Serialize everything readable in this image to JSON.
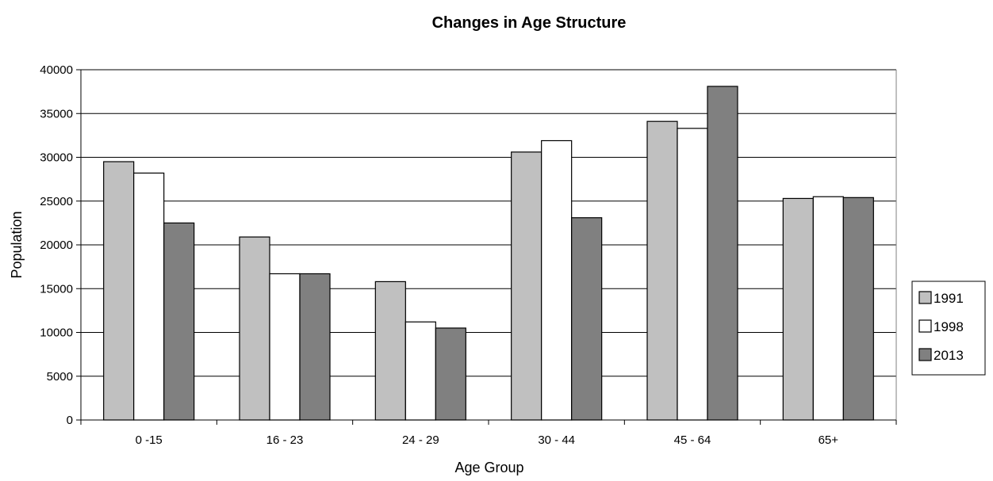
{
  "chart_data": {
    "type": "bar",
    "title": "Changes in Age Structure",
    "xlabel": "Age Group",
    "ylabel": "Population",
    "ylim": [
      0,
      40000
    ],
    "yticks": [
      0,
      5000,
      10000,
      15000,
      20000,
      25000,
      30000,
      35000,
      40000
    ],
    "grid": true,
    "legend_position": "right",
    "categories": [
      "0 -15",
      "16 - 23",
      "24 - 29",
      "30 - 44",
      "45 - 64",
      "65+"
    ],
    "series": [
      {
        "name": "1991",
        "color": "#c0c0c0",
        "values": [
          29500,
          20900,
          15800,
          30600,
          34100,
          25300
        ]
      },
      {
        "name": "1998",
        "color": "#ffffff",
        "values": [
          28200,
          16700,
          11200,
          31900,
          33300,
          25500
        ]
      },
      {
        "name": "2013",
        "color": "#808080",
        "values": [
          22500,
          16700,
          10500,
          23100,
          38100,
          25400
        ]
      }
    ]
  }
}
